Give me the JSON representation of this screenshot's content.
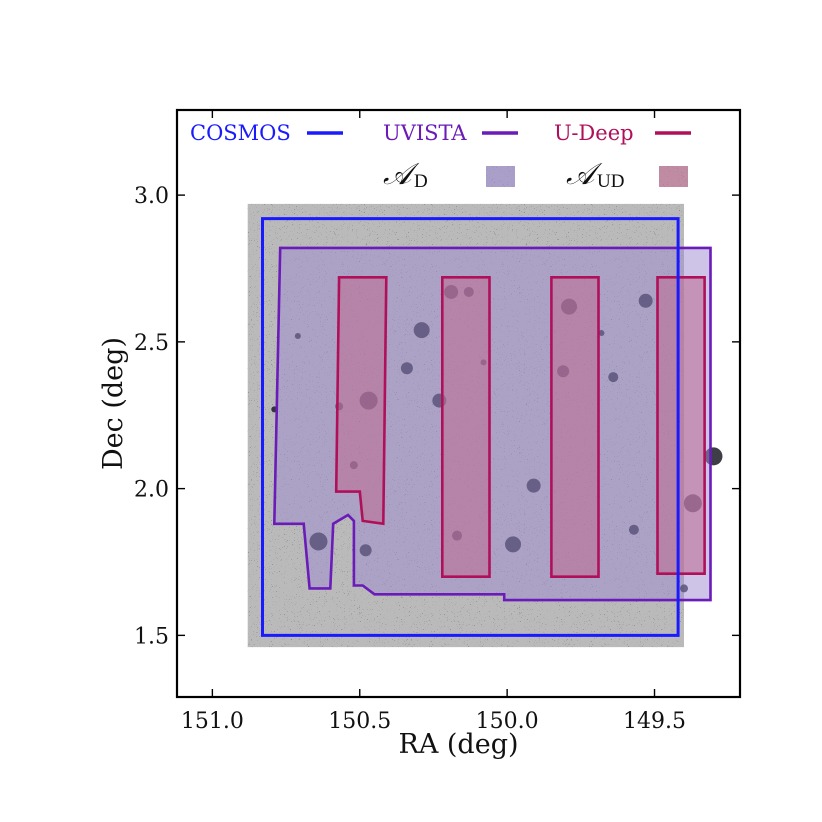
{
  "chart_data": {
    "type": "image-overlay",
    "xlabel": "RA (deg)",
    "ylabel": "Dec (deg)",
    "xlim": [
      151.12,
      149.21
    ],
    "ylim": [
      1.29,
      3.29
    ],
    "x_ticks": [
      151.0,
      150.5,
      150.0,
      149.5
    ],
    "x_tick_labels": [
      "151.0",
      "150.5",
      "150.0",
      "149.5"
    ],
    "y_ticks": [
      1.5,
      2.0,
      2.5,
      3.0
    ],
    "y_tick_labels": [
      "1.5",
      "2.0",
      "2.5",
      "3.0"
    ],
    "grid": false,
    "legend": {
      "placement": "top",
      "items": [
        {
          "label": "COSMOS",
          "kind": "line",
          "color": "#1a1aff"
        },
        {
          "label": "UVISTA",
          "kind": "line",
          "color": "#6a1bb8"
        },
        {
          "label": "U-Deep",
          "kind": "line",
          "color": "#b0105a"
        },
        {
          "symbol": "𝒜",
          "subscript": "D",
          "kind": "patch",
          "color": "#9b8ad0"
        },
        {
          "symbol": "𝒜",
          "subscript": "UD",
          "kind": "patch",
          "color": "#c06a92"
        }
      ]
    },
    "background_image": {
      "ra_range": [
        150.88,
        149.4
      ],
      "dec_range": [
        1.46,
        2.97
      ]
    },
    "regions": [
      {
        "name": "COSMOS",
        "color": "#1a1aff",
        "fill": null,
        "polygons": [
          [
            [
              150.83,
              2.92
            ],
            [
              149.42,
              2.92
            ],
            [
              149.42,
              1.5
            ],
            [
              150.83,
              1.5
            ]
          ]
        ]
      },
      {
        "name": "UVISTA",
        "color": "#6a1bb8",
        "fill": "#9b8ad0",
        "polygons": [
          [
            [
              150.77,
              2.82
            ],
            [
              149.31,
              2.82
            ],
            [
              149.31,
              1.62
            ],
            [
              150.01,
              1.62
            ],
            [
              150.01,
              1.64
            ],
            [
              150.45,
              1.64
            ],
            [
              150.49,
              1.67
            ],
            [
              150.52,
              1.67
            ],
            [
              150.52,
              1.89
            ],
            [
              150.54,
              1.91
            ],
            [
              150.59,
              1.88
            ],
            [
              150.6,
              1.66
            ],
            [
              150.67,
              1.66
            ],
            [
              150.69,
              1.88
            ],
            [
              150.79,
              1.88
            ]
          ]
        ]
      },
      {
        "name": "U-Deep",
        "color": "#b0105a",
        "fill": "#c06a92",
        "polygons": [
          [
            [
              150.57,
              2.72
            ],
            [
              150.41,
              2.72
            ],
            [
              150.42,
              1.88
            ],
            [
              150.49,
              1.89
            ],
            [
              150.5,
              1.99
            ],
            [
              150.58,
              1.99
            ]
          ],
          [
            [
              150.22,
              2.72
            ],
            [
              150.06,
              2.72
            ],
            [
              150.06,
              1.7
            ],
            [
              150.22,
              1.7
            ]
          ],
          [
            [
              149.85,
              2.72
            ],
            [
              149.69,
              2.72
            ],
            [
              149.69,
              1.7
            ],
            [
              149.85,
              1.7
            ]
          ],
          [
            [
              149.49,
              2.72
            ],
            [
              149.33,
              2.72
            ],
            [
              149.33,
              1.71
            ],
            [
              149.49,
              1.71
            ]
          ]
        ]
      }
    ],
    "bright_sources": [
      [
        150.71,
        2.52
      ],
      [
        150.13,
        2.67
      ],
      [
        150.19,
        2.67
      ],
      [
        150.64,
        1.82
      ],
      [
        150.57,
        2.28
      ],
      [
        149.81,
        2.4
      ],
      [
        149.79,
        2.62
      ],
      [
        149.68,
        2.53
      ],
      [
        149.64,
        2.38
      ],
      [
        149.91,
        2.01
      ],
      [
        150.47,
        2.3
      ],
      [
        150.52,
        2.08
      ],
      [
        150.34,
        2.41
      ],
      [
        150.29,
        2.54
      ],
      [
        150.08,
        2.43
      ],
      [
        150.17,
        1.84
      ],
      [
        149.53,
        2.64
      ],
      [
        149.3,
        2.11
      ],
      [
        149.4,
        1.66
      ],
      [
        150.48,
        1.79
      ],
      [
        149.98,
        1.81
      ],
      [
        150.79,
        2.27
      ],
      [
        149.57,
        1.86
      ],
      [
        150.23,
        2.3
      ],
      [
        149.37,
        1.95
      ]
    ]
  }
}
